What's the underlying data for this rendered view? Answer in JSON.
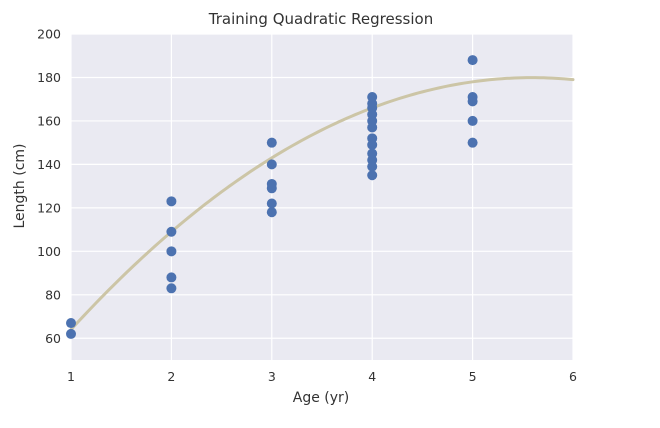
{
  "chart_data": {
    "type": "scatter",
    "title": "Training Quadratic Regression",
    "xlabel": "Age (yr)",
    "ylabel": "Length (cm)",
    "xlim": [
      1,
      6
    ],
    "ylim": [
      50,
      200
    ],
    "xticks": [
      1,
      2,
      3,
      4,
      5,
      6
    ],
    "yticks": [
      60,
      80,
      100,
      120,
      140,
      160,
      180,
      200
    ],
    "grid": true,
    "colors": {
      "background": "#eaeaf2",
      "points": "#4c72b0",
      "fit": "#ccc5a6"
    },
    "series": [
      {
        "type": "scatter",
        "points": [
          [
            1,
            67
          ],
          [
            1,
            62
          ],
          [
            2,
            123
          ],
          [
            2,
            109
          ],
          [
            2,
            100
          ],
          [
            2,
            88
          ],
          [
            2,
            83
          ],
          [
            3,
            150
          ],
          [
            3,
            140
          ],
          [
            3,
            131
          ],
          [
            3,
            129
          ],
          [
            3,
            122
          ],
          [
            3,
            118
          ],
          [
            4,
            171
          ],
          [
            4,
            168
          ],
          [
            4,
            166
          ],
          [
            4,
            163
          ],
          [
            4,
            160
          ],
          [
            4,
            157
          ],
          [
            4,
            152
          ],
          [
            4,
            149
          ],
          [
            4,
            145
          ],
          [
            4,
            142
          ],
          [
            4,
            139
          ],
          [
            4,
            135
          ],
          [
            5,
            188
          ],
          [
            5,
            171
          ],
          [
            5,
            169
          ],
          [
            5,
            160
          ],
          [
            5,
            150
          ]
        ]
      },
      {
        "type": "line",
        "curve": "quadratic",
        "coefficients": {
          "a": -5.5,
          "b": 61.5,
          "c": 8
        }
      }
    ]
  }
}
